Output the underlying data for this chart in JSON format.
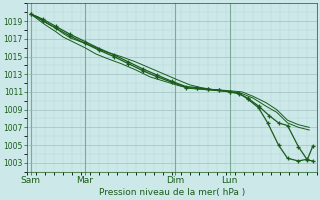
{
  "title": "",
  "xlabel": "Pression niveau de la mer( hPa )",
  "ylabel": "",
  "bg_color": "#cce8e8",
  "grid_color_major": "#a0c0c0",
  "grid_color_minor": "#b8d8d8",
  "line_color": "#1a5c1a",
  "marker_color": "#1a5c1a",
  "tick_color": "#1a5c1a",
  "ylim": [
    1002.0,
    1021.0
  ],
  "yticks": [
    1003,
    1005,
    1007,
    1009,
    1011,
    1013,
    1015,
    1017,
    1019
  ],
  "day_labels": [
    "Sam",
    "Mar",
    "Dim",
    "Lun"
  ],
  "day_positions": [
    0.0,
    1.5,
    4.0,
    5.5
  ],
  "xlim": [
    -0.1,
    7.9
  ],
  "minor_ystep": 1,
  "minor_xstep": 0.25,
  "s1_x": [
    0.0,
    0.2,
    0.4,
    0.7,
    0.9,
    1.1,
    1.5,
    1.8,
    2.1,
    2.5,
    2.9,
    3.3,
    3.7,
    4.1,
    4.4,
    4.7,
    5.0,
    5.3,
    5.6,
    5.85,
    6.15,
    6.5,
    6.8,
    7.1,
    7.4,
    7.7
  ],
  "s1_y": [
    1019.8,
    1019.5,
    1018.9,
    1018.2,
    1017.6,
    1017.1,
    1016.5,
    1016.0,
    1015.5,
    1015.0,
    1014.4,
    1013.7,
    1013.0,
    1012.3,
    1011.8,
    1011.5,
    1011.3,
    1011.2,
    1011.1,
    1011.0,
    1010.5,
    1009.8,
    1009.0,
    1007.8,
    1007.3,
    1007.0
  ],
  "s2_x": [
    0.0,
    0.2,
    0.4,
    0.7,
    0.9,
    1.1,
    1.5,
    1.8,
    2.1,
    2.5,
    2.9,
    3.3,
    3.7,
    4.1,
    4.4,
    4.7,
    5.0,
    5.3,
    5.6,
    5.85,
    6.15,
    6.5,
    6.8,
    7.1,
    7.4,
    7.7
  ],
  "s2_y": [
    1019.8,
    1019.2,
    1018.6,
    1017.8,
    1017.2,
    1016.8,
    1016.0,
    1015.3,
    1014.8,
    1014.2,
    1013.5,
    1012.7,
    1012.2,
    1011.7,
    1011.4,
    1011.3,
    1011.2,
    1011.1,
    1011.0,
    1010.8,
    1010.3,
    1009.4,
    1008.7,
    1007.5,
    1007.0,
    1006.7
  ],
  "s3_x": [
    0.0,
    0.35,
    0.7,
    1.1,
    1.5,
    1.9,
    2.3,
    2.7,
    3.1,
    3.5,
    3.9,
    4.3,
    4.6,
    4.9,
    5.2,
    5.5,
    5.75,
    6.0,
    6.3,
    6.6,
    6.85,
    7.1,
    7.4,
    7.65,
    7.8
  ],
  "s3_y": [
    1019.8,
    1019.0,
    1018.2,
    1017.3,
    1016.5,
    1015.7,
    1015.0,
    1014.2,
    1013.4,
    1012.7,
    1012.1,
    1011.5,
    1011.4,
    1011.3,
    1011.2,
    1011.0,
    1010.8,
    1010.3,
    1009.4,
    1008.3,
    1007.5,
    1007.2,
    1004.8,
    1003.3,
    1003.2
  ],
  "s4_x": [
    0.0,
    0.35,
    0.7,
    1.1,
    1.5,
    1.9,
    2.3,
    2.7,
    3.1,
    3.5,
    3.9,
    4.3,
    4.6,
    4.9,
    5.2,
    5.5,
    5.75,
    6.0,
    6.3,
    6.55,
    6.85,
    7.1,
    7.4,
    7.65,
    7.8
  ],
  "s4_y": [
    1019.8,
    1019.2,
    1018.4,
    1017.5,
    1016.7,
    1015.9,
    1015.2,
    1014.4,
    1013.6,
    1012.9,
    1012.2,
    1011.6,
    1011.5,
    1011.3,
    1011.2,
    1011.0,
    1010.9,
    1010.2,
    1009.2,
    1007.5,
    1005.0,
    1003.5,
    1003.2,
    1003.4,
    1004.9
  ]
}
